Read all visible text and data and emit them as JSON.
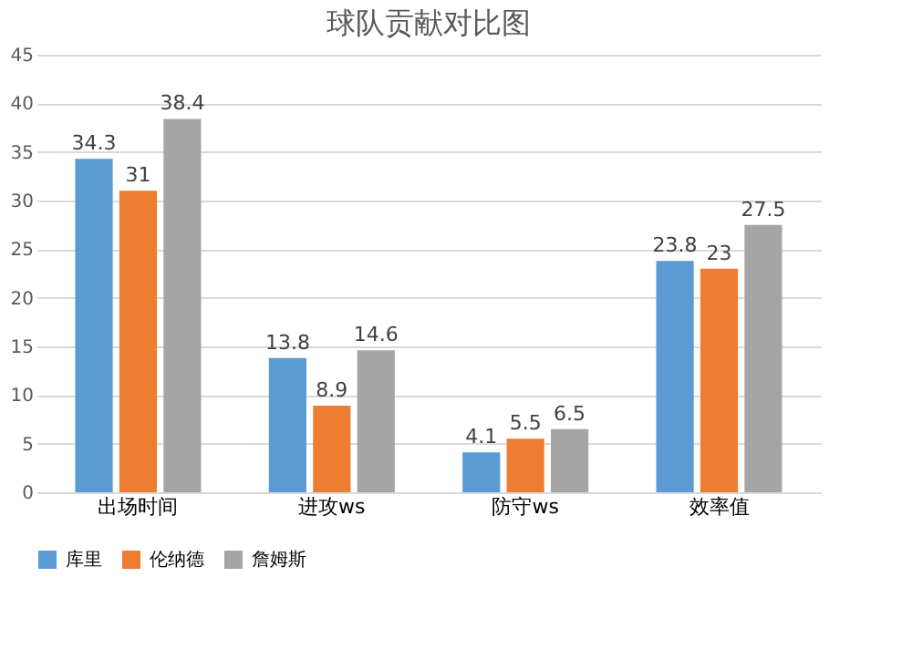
{
  "chart_data": {
    "type": "bar",
    "title": "球队贡献对比图",
    "categories": [
      "出场时间",
      "进攻ws",
      "防守ws",
      "效率值"
    ],
    "series": [
      {
        "name": "库里",
        "color": "#5b9bd5",
        "values": [
          34.3,
          13.8,
          4.1,
          23.8
        ]
      },
      {
        "name": "伦纳德",
        "color": "#ed7d31",
        "values": [
          31,
          8.9,
          5.5,
          23
        ]
      },
      {
        "name": "詹姆斯",
        "color": "#a5a5a5",
        "values": [
          38.4,
          14.6,
          6.5,
          27.5
        ]
      }
    ],
    "ylim": [
      0,
      45
    ],
    "yticks": [
      0,
      5,
      10,
      15,
      20,
      25,
      30,
      35,
      40,
      45
    ],
    "grid": "y",
    "legend": "bottom",
    "data_labels": true
  }
}
